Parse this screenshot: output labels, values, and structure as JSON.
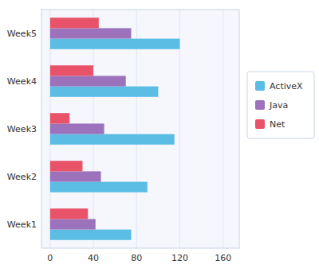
{
  "chart_data": {
    "type": "bar",
    "orientation": "horizontal",
    "categories": [
      "Week1",
      "Week2",
      "Week3",
      "Week4",
      "Week5"
    ],
    "series": [
      {
        "name": "ActiveX",
        "color": "#5BBDE4",
        "values": [
          75,
          90,
          115,
          100,
          120
        ]
      },
      {
        "name": "Java",
        "color": "#9B72BB",
        "values": [
          42,
          47,
          50,
          70,
          75
        ]
      },
      {
        "name": "Net",
        "color": "#E8536A",
        "values": [
          35,
          30,
          18,
          40,
          45
        ]
      }
    ],
    "xlim": [
      -8,
      175
    ],
    "xticks": [
      0,
      40,
      80,
      120,
      160
    ],
    "grid": true,
    "legend": "right"
  }
}
